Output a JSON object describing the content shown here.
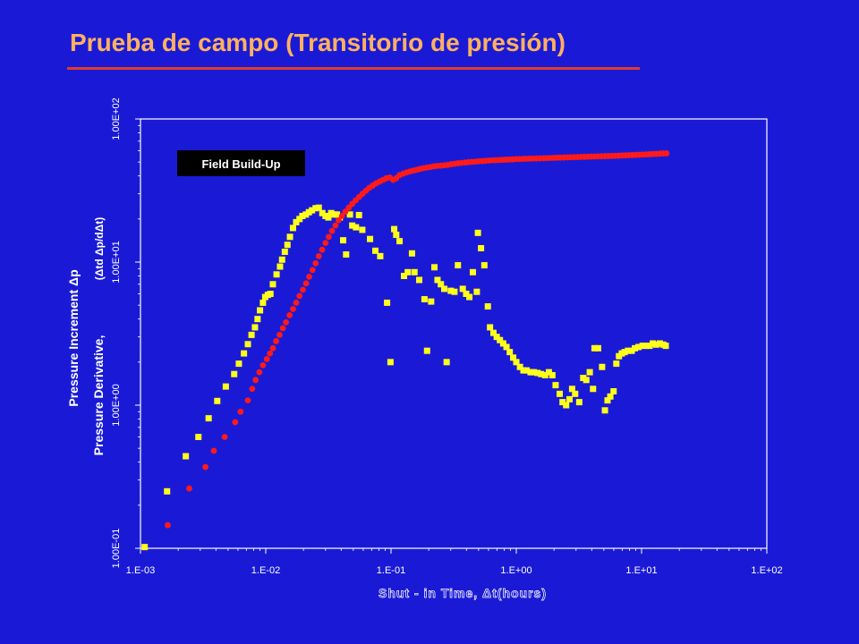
{
  "slide": {
    "title": "Prueba de campo (Transitorio de presión)"
  },
  "colors": {
    "background": "#1a1ad6",
    "title": "#ffb060",
    "rule": "#e23a2a",
    "pressure": "#ff1a1a",
    "derivative": "#ffff1a"
  },
  "chart_data": {
    "type": "scatter",
    "x_scale": "log",
    "y_scale": "log",
    "xlim": [
      0.001,
      100
    ],
    "ylim": [
      0.1,
      100
    ],
    "grid": false,
    "x_ticks": [
      "1.E-03",
      "1.E-02",
      "1.E-01",
      "1.E+00",
      "1.E+01",
      "1.E+02"
    ],
    "y_ticks": [
      "1.00E-01",
      "1.00E+00",
      "1.00E+01",
      "1.00E+02"
    ],
    "xlabel": "Shut - in Time, Δt(hours)",
    "ylabel_line1": "Pressure Increment  Δp",
    "ylabel_line2": "Pressure Derivative,",
    "ylabel_line2_sym": "(Δtd Δp/dΔt)",
    "annotation": "Field Build-Up",
    "series": [
      {
        "key": "pressure",
        "marker": "circle",
        "points": [
          [
            0.00165,
            0.145
          ],
          [
            0.00245,
            0.262
          ],
          [
            0.0033,
            0.37
          ],
          [
            0.00385,
            0.48
          ],
          [
            0.0047,
            0.6
          ],
          [
            0.0057,
            0.76
          ],
          [
            0.0063,
            0.9
          ],
          [
            0.0072,
            1.08
          ],
          [
            0.0078,
            1.3
          ],
          [
            0.0083,
            1.5
          ],
          [
            0.0089,
            1.7
          ],
          [
            0.0095,
            1.9
          ],
          [
            0.0102,
            2.1
          ],
          [
            0.0108,
            2.3
          ],
          [
            0.0114,
            2.5
          ],
          [
            0.0121,
            2.8
          ],
          [
            0.0129,
            3.1
          ],
          [
            0.0137,
            3.45
          ],
          [
            0.0145,
            3.8
          ],
          [
            0.0155,
            4.25
          ],
          [
            0.0165,
            4.7
          ],
          [
            0.0175,
            5.2
          ],
          [
            0.0186,
            5.8
          ],
          [
            0.0198,
            6.4
          ],
          [
            0.021,
            7.1
          ],
          [
            0.0222,
            7.9
          ],
          [
            0.0236,
            8.8
          ],
          [
            0.025,
            9.8
          ],
          [
            0.0265,
            11.0
          ],
          [
            0.0282,
            12.2
          ],
          [
            0.03,
            13.6
          ],
          [
            0.0318,
            15.0
          ],
          [
            0.0338,
            16.5
          ],
          [
            0.036,
            18.0
          ],
          [
            0.0382,
            19.6
          ],
          [
            0.0406,
            21.0
          ],
          [
            0.0432,
            22.5
          ],
          [
            0.046,
            24.0
          ],
          [
            0.049,
            25.5
          ],
          [
            0.0522,
            27.0
          ],
          [
            0.0556,
            28.5
          ],
          [
            0.0592,
            30.0
          ],
          [
            0.063,
            31.5
          ],
          [
            0.067,
            33.0
          ],
          [
            0.0714,
            34.2
          ],
          [
            0.076,
            35.5
          ],
          [
            0.081,
            36.5
          ],
          [
            0.0862,
            37.5
          ],
          [
            0.0918,
            38.5
          ],
          [
            0.0978,
            39.0
          ],
          [
            0.104,
            37.5
          ],
          [
            0.11,
            38.5
          ],
          [
            0.117,
            40.5
          ],
          [
            0.125,
            41.5
          ],
          [
            0.133,
            42.3
          ],
          [
            0.142,
            43.0
          ],
          [
            0.151,
            43.6
          ],
          [
            0.161,
            44.2
          ],
          [
            0.171,
            44.8
          ],
          [
            0.182,
            45.3
          ],
          [
            0.194,
            45.8
          ],
          [
            0.207,
            46.2
          ],
          [
            0.22,
            46.7
          ],
          [
            0.234,
            47.0
          ],
          [
            0.25,
            47.2
          ],
          [
            0.266,
            47.5
          ],
          [
            0.283,
            47.8
          ],
          [
            0.301,
            48.2
          ],
          [
            0.321,
            48.6
          ],
          [
            0.342,
            49.0
          ],
          [
            0.364,
            49.3
          ],
          [
            0.388,
            49.6
          ],
          [
            0.413,
            49.9
          ],
          [
            0.44,
            50.1
          ],
          [
            0.468,
            50.3
          ],
          [
            0.498,
            50.6
          ],
          [
            0.531,
            50.8
          ],
          [
            0.565,
            51.0
          ],
          [
            0.602,
            51.2
          ],
          [
            0.641,
            51.4
          ],
          [
            0.683,
            51.5
          ],
          [
            0.727,
            51.7
          ],
          [
            0.774,
            51.8
          ],
          [
            0.824,
            52.0
          ],
          [
            0.878,
            52.1
          ],
          [
            0.935,
            52.2
          ],
          [
            0.996,
            52.4
          ],
          [
            1.06,
            52.5
          ],
          [
            1.13,
            52.6
          ],
          [
            1.2,
            52.7
          ],
          [
            1.28,
            52.8
          ],
          [
            1.36,
            52.9
          ],
          [
            1.45,
            53.0
          ],
          [
            1.55,
            53.1
          ],
          [
            1.65,
            53.2
          ],
          [
            1.75,
            53.3
          ],
          [
            1.87,
            53.4
          ],
          [
            1.99,
            53.5
          ],
          [
            2.12,
            53.6
          ],
          [
            2.25,
            53.7
          ],
          [
            2.4,
            53.8
          ],
          [
            2.56,
            53.9
          ],
          [
            2.72,
            54.0
          ],
          [
            2.9,
            54.1
          ],
          [
            3.09,
            54.2
          ],
          [
            3.29,
            54.3
          ],
          [
            3.5,
            54.4
          ],
          [
            3.73,
            54.5
          ],
          [
            3.97,
            54.6
          ],
          [
            4.23,
            54.7
          ],
          [
            4.5,
            54.8
          ],
          [
            4.8,
            54.9
          ],
          [
            5.11,
            55.0
          ],
          [
            5.44,
            55.1
          ],
          [
            5.79,
            55.2
          ],
          [
            6.17,
            55.3
          ],
          [
            6.57,
            55.4
          ],
          [
            7.0,
            55.6
          ],
          [
            7.45,
            55.7
          ],
          [
            7.93,
            55.8
          ],
          [
            8.45,
            56.0
          ],
          [
            9.0,
            56.1
          ],
          [
            9.58,
            56.2
          ],
          [
            10.2,
            56.4
          ],
          [
            10.9,
            56.5
          ],
          [
            11.6,
            56.7
          ],
          [
            12.3,
            56.9
          ],
          [
            13.1,
            57.0
          ],
          [
            14.0,
            57.2
          ],
          [
            14.9,
            57.4
          ],
          [
            15.8,
            57.5
          ]
        ]
      },
      {
        "key": "derivative",
        "marker": "square",
        "points": [
          [
            0.00108,
            0.102
          ],
          [
            0.00163,
            0.25
          ],
          [
            0.0023,
            0.44
          ],
          [
            0.0029,
            0.6
          ],
          [
            0.0035,
            0.81
          ],
          [
            0.0041,
            1.07
          ],
          [
            0.0048,
            1.35
          ],
          [
            0.0056,
            1.65
          ],
          [
            0.0061,
            1.95
          ],
          [
            0.0067,
            2.3
          ],
          [
            0.0072,
            2.67
          ],
          [
            0.0077,
            3.1
          ],
          [
            0.0082,
            3.5
          ],
          [
            0.0086,
            4.0
          ],
          [
            0.009,
            4.6
          ],
          [
            0.0095,
            5.2
          ],
          [
            0.0099,
            5.7
          ],
          [
            0.0104,
            5.9
          ],
          [
            0.0109,
            6.0
          ],
          [
            0.0114,
            7.0
          ],
          [
            0.0122,
            8.2
          ],
          [
            0.013,
            9.3
          ],
          [
            0.0135,
            10.4
          ],
          [
            0.0142,
            11.8
          ],
          [
            0.0149,
            13.2
          ],
          [
            0.0156,
            15.0
          ],
          [
            0.0165,
            17.3
          ],
          [
            0.0175,
            19.0
          ],
          [
            0.0186,
            20.0
          ],
          [
            0.0196,
            21.0
          ],
          [
            0.0209,
            21.5
          ],
          [
            0.0221,
            22.3
          ],
          [
            0.0234,
            23.0
          ],
          [
            0.025,
            23.8
          ],
          [
            0.0265,
            24.0
          ],
          [
            0.0283,
            22.0
          ],
          [
            0.03,
            21.0
          ],
          [
            0.0316,
            20.5
          ],
          [
            0.0333,
            22.0
          ],
          [
            0.035,
            21.5
          ],
          [
            0.037,
            21.5
          ],
          [
            0.039,
            20.5
          ],
          [
            0.0415,
            14.2
          ],
          [
            0.0438,
            11.3
          ],
          [
            0.047,
            21.5
          ],
          [
            0.049,
            18.0
          ],
          [
            0.0525,
            17.5
          ],
          [
            0.0555,
            21.3
          ],
          [
            0.059,
            16.8
          ],
          [
            0.068,
            14.5
          ],
          [
            0.075,
            12.0
          ],
          [
            0.082,
            11.0
          ],
          [
            0.093,
            5.2
          ],
          [
            0.099,
            2.0
          ],
          [
            0.106,
            17.0
          ],
          [
            0.11,
            15.5
          ],
          [
            0.117,
            14.0
          ],
          [
            0.127,
            8.0
          ],
          [
            0.136,
            8.5
          ],
          [
            0.147,
            11.5
          ],
          [
            0.154,
            8.5
          ],
          [
            0.168,
            7.5
          ],
          [
            0.185,
            5.5
          ],
          [
            0.194,
            2.4
          ],
          [
            0.209,
            5.3
          ],
          [
            0.222,
            9.2
          ],
          [
            0.235,
            7.5
          ],
          [
            0.25,
            7.0
          ],
          [
            0.266,
            6.5
          ],
          [
            0.278,
            2.0
          ],
          [
            0.3,
            6.3
          ],
          [
            0.321,
            6.2
          ],
          [
            0.342,
            9.5
          ],
          [
            0.374,
            6.5
          ],
          [
            0.398,
            6.0
          ],
          [
            0.422,
            5.7
          ],
          [
            0.45,
            8.5
          ],
          [
            0.484,
            6.2
          ],
          [
            0.494,
            16.0
          ],
          [
            0.523,
            12.5
          ],
          [
            0.556,
            9.5
          ],
          [
            0.593,
            4.9
          ],
          [
            0.617,
            3.5
          ],
          [
            0.657,
            3.2
          ],
          [
            0.698,
            3.0
          ],
          [
            0.74,
            2.85
          ],
          [
            0.786,
            2.7
          ],
          [
            0.835,
            2.55
          ],
          [
            0.887,
            2.35
          ],
          [
            0.945,
            2.15
          ],
          [
            1.0,
            2.0
          ],
          [
            1.07,
            1.85
          ],
          [
            1.14,
            1.75
          ],
          [
            1.21,
            1.75
          ],
          [
            1.3,
            1.7
          ],
          [
            1.38,
            1.7
          ],
          [
            1.48,
            1.68
          ],
          [
            1.58,
            1.65
          ],
          [
            1.7,
            1.62
          ],
          [
            1.82,
            1.7
          ],
          [
            1.94,
            1.62
          ],
          [
            2.06,
            1.38
          ],
          [
            2.22,
            1.2
          ],
          [
            2.34,
            1.05
          ],
          [
            2.5,
            1.0
          ],
          [
            2.66,
            1.1
          ],
          [
            2.79,
            1.3
          ],
          [
            2.95,
            1.2
          ],
          [
            3.18,
            1.05
          ],
          [
            3.42,
            1.55
          ],
          [
            3.62,
            1.5
          ],
          [
            3.86,
            1.7
          ],
          [
            4.1,
            1.3
          ],
          [
            4.21,
            2.5
          ],
          [
            4.5,
            2.5
          ],
          [
            4.84,
            1.85
          ],
          [
            5.1,
            0.92
          ],
          [
            5.35,
            1.08
          ],
          [
            5.63,
            1.15
          ],
          [
            5.98,
            1.25
          ],
          [
            6.29,
            1.95
          ],
          [
            6.6,
            2.2
          ],
          [
            6.96,
            2.3
          ],
          [
            7.33,
            2.35
          ],
          [
            7.79,
            2.4
          ],
          [
            8.35,
            2.4
          ],
          [
            8.85,
            2.5
          ],
          [
            9.46,
            2.55
          ],
          [
            10.2,
            2.6
          ],
          [
            10.9,
            2.6
          ],
          [
            11.6,
            2.6
          ],
          [
            12.3,
            2.7
          ],
          [
            13.1,
            2.65
          ],
          [
            14.0,
            2.7
          ],
          [
            14.9,
            2.65
          ],
          [
            15.6,
            2.6
          ]
        ]
      }
    ]
  }
}
